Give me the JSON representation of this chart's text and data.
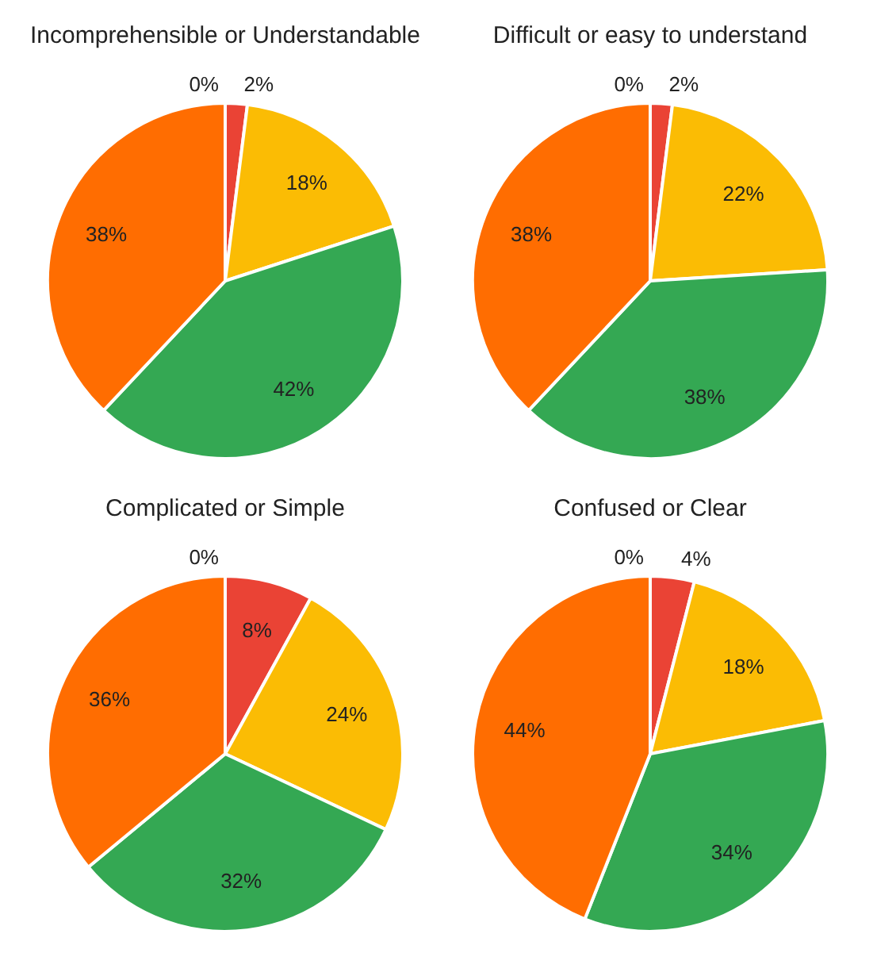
{
  "chart_data": [
    {
      "type": "pie",
      "title": "Incomprehensible  or Understandable",
      "categories": [
        null,
        null,
        null,
        null,
        null
      ],
      "values": [
        0,
        2,
        18,
        42,
        38
      ],
      "value_labels": [
        "0%",
        "2%",
        "18%",
        "42%",
        "38%"
      ],
      "colors": [
        "#4285f4",
        "#ea4335",
        "#fbbc04",
        "#34a853",
        "#ff6d01"
      ]
    },
    {
      "type": "pie",
      "title": "Difficult or easy to understand",
      "categories": [
        null,
        null,
        null,
        null,
        null
      ],
      "values": [
        0,
        2,
        22,
        38,
        38
      ],
      "value_labels": [
        "0%",
        "2%",
        "22%",
        "38%",
        "38%"
      ],
      "colors": [
        "#4285f4",
        "#ea4335",
        "#fbbc04",
        "#34a853",
        "#ff6d01"
      ]
    },
    {
      "type": "pie",
      "title": "Complicated or Simple",
      "categories": [
        null,
        null,
        null,
        null,
        null
      ],
      "values": [
        0,
        8,
        24,
        32,
        36
      ],
      "value_labels": [
        "0%",
        "8%",
        "24%",
        "32%",
        "36%"
      ],
      "colors": [
        "#4285f4",
        "#ea4335",
        "#fbbc04",
        "#34a853",
        "#ff6d01"
      ]
    },
    {
      "type": "pie",
      "title": "Confused or Clear",
      "categories": [
        null,
        null,
        null,
        null,
        null
      ],
      "values": [
        0,
        4,
        18,
        34,
        44
      ],
      "value_labels": [
        "0%",
        "4%",
        "18%",
        "34%",
        "44%"
      ],
      "colors": [
        "#4285f4",
        "#ea4335",
        "#fbbc04",
        "#34a853",
        "#ff6d01"
      ]
    }
  ]
}
